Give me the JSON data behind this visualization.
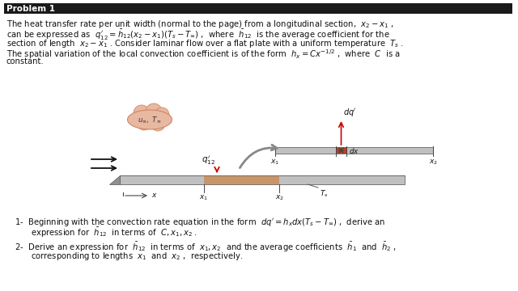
{
  "bg_color": "#ffffff",
  "header_bg": "#1a1a1a",
  "header_text_color": "#ffffff",
  "plate_color": "#c0c0c0",
  "plate_highlight": "#c8956a",
  "bubble_color": "#e8b8a0",
  "red_color": "#cc0000",
  "dark_gray": "#555555",
  "text_color": "#111111"
}
